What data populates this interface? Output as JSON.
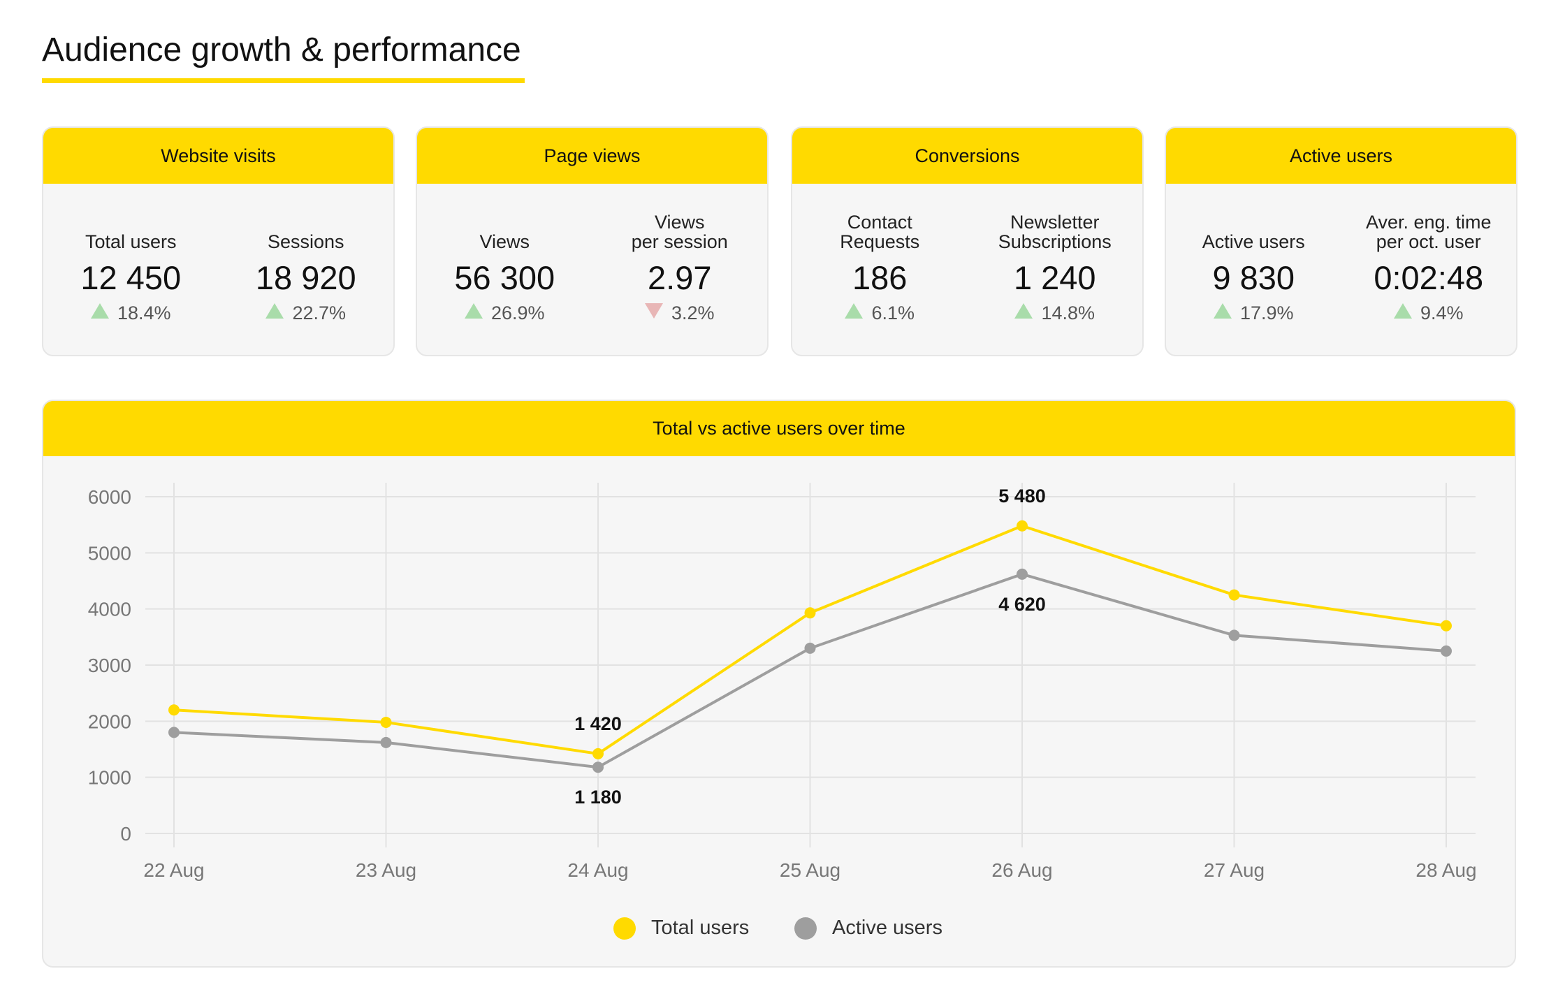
{
  "title": "Audience growth & performance",
  "colors": {
    "accent": "#FFDA00",
    "total": "#FFDA00",
    "active": "#9e9e9e",
    "up": "#a9dcaa",
    "down": "#e8b6b6"
  },
  "cards": [
    {
      "title": "Website visits",
      "metrics": [
        {
          "label": "Total users",
          "value": "12 450",
          "change": "18.4%",
          "direction": "up"
        },
        {
          "label": "Sessions",
          "value": "18 920",
          "change": "22.7%",
          "direction": "up"
        }
      ]
    },
    {
      "title": "Page views",
      "metrics": [
        {
          "label": "Views",
          "value": "56 300",
          "change": "26.9%",
          "direction": "up"
        },
        {
          "label": "Views\nper session",
          "value": "2.97",
          "change": "3.2%",
          "direction": "down"
        }
      ]
    },
    {
      "title": "Conversions",
      "metrics": [
        {
          "label": "Contact\nRequests",
          "value": "186",
          "change": "6.1%",
          "direction": "up"
        },
        {
          "label": "Newsletter\nSubscriptions",
          "value": "1 240",
          "change": "14.8%",
          "direction": "up"
        }
      ]
    },
    {
      "title": "Active users",
      "metrics": [
        {
          "label": "Active users",
          "value": "9 830",
          "change": "17.9%",
          "direction": "up"
        },
        {
          "label": "Aver. eng. time\nper oct. user",
          "value": "0:02:48",
          "change": "9.4%",
          "direction": "up"
        }
      ]
    }
  ],
  "chart_data": {
    "type": "line",
    "title": "Total vs active users over time",
    "categories": [
      "22 Aug",
      "23 Aug",
      "24 Aug",
      "25 Aug",
      "26 Aug",
      "27 Aug",
      "28 Aug"
    ],
    "series": [
      {
        "name": "Total users",
        "color": "#FFDA00",
        "values": [
          2200,
          1980,
          1420,
          3930,
          5480,
          4250,
          3700
        ]
      },
      {
        "name": "Active users",
        "color": "#9e9e9e",
        "values": [
          1800,
          1620,
          1180,
          3300,
          4620,
          3530,
          3250
        ]
      }
    ],
    "data_labels": [
      {
        "series": 0,
        "index": 2,
        "text": "1 420",
        "position": "above"
      },
      {
        "series": 1,
        "index": 2,
        "text": "1 180",
        "position": "below"
      },
      {
        "series": 0,
        "index": 4,
        "text": "5 480",
        "position": "above"
      },
      {
        "series": 1,
        "index": 4,
        "text": "4 620",
        "position": "below"
      }
    ],
    "yticks": [
      "0",
      "1000",
      "2000",
      "3000",
      "4000",
      "5000",
      "6000"
    ],
    "ylim": [
      0,
      6000
    ],
    "grid": true,
    "legend": "bottom-center"
  }
}
